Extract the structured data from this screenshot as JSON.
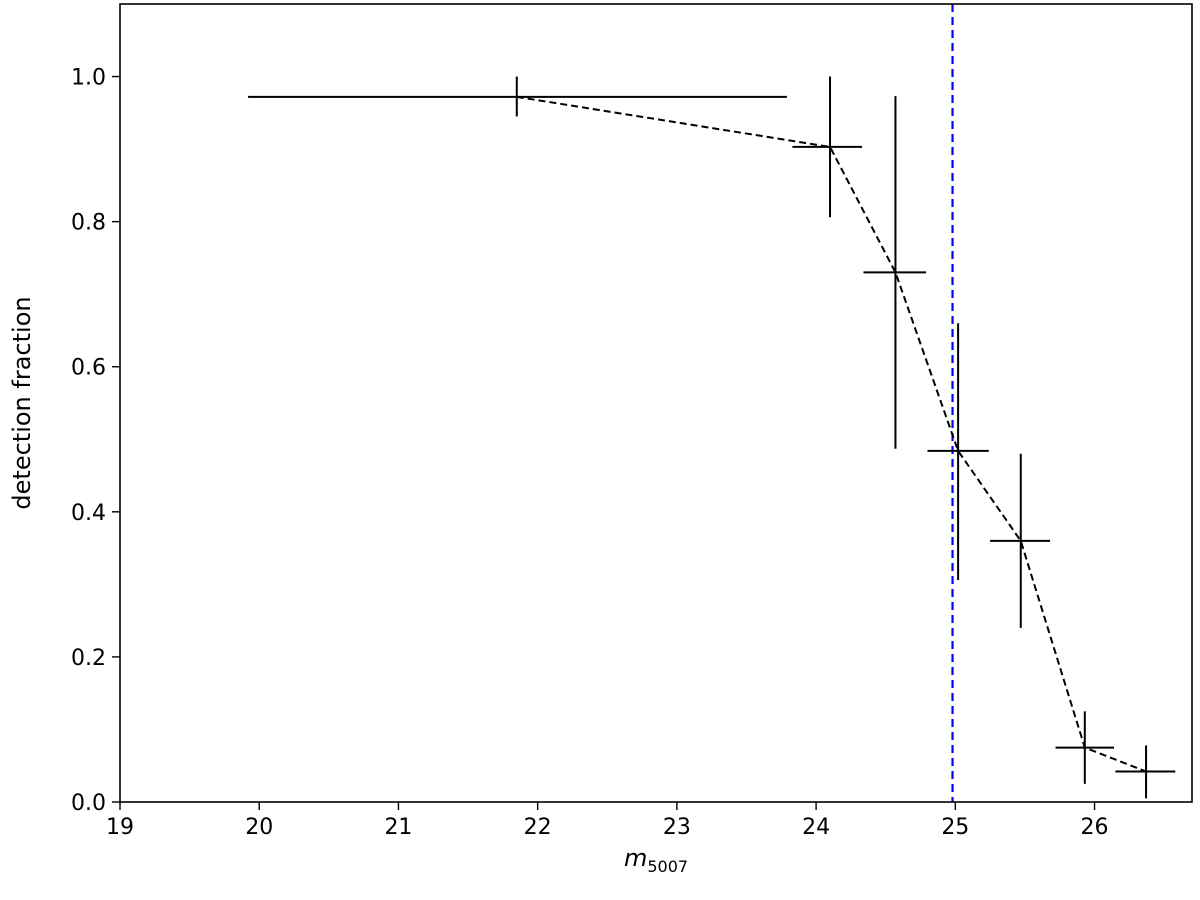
{
  "chart_data": {
    "type": "scatter",
    "xlabel": "m",
    "xlabel_subscript": "5007",
    "ylabel": "detection fraction",
    "xlim": [
      19,
      26.7
    ],
    "ylim": [
      0,
      1.1
    ],
    "xticks": [
      19,
      20,
      21,
      22,
      23,
      24,
      25,
      26
    ],
    "yticks": [
      0.0,
      0.2,
      0.4,
      0.6,
      0.8,
      1.0
    ],
    "ytick_labels": [
      "0.0",
      "0.2",
      "0.4",
      "0.6",
      "0.8",
      "1.0"
    ],
    "grid": false,
    "series": [
      {
        "style": "errorbar-dashed-line",
        "color": "#000000",
        "points": [
          {
            "x": 21.85,
            "y": 0.972,
            "xerr_low": 19.92,
            "xerr_high": 23.79,
            "yerr_low": 0.945,
            "yerr_high": 1.0
          },
          {
            "x": 24.1,
            "y": 0.903,
            "xerr_low": 23.83,
            "xerr_high": 24.33,
            "yerr_low": 0.806,
            "yerr_high": 1.0
          },
          {
            "x": 24.57,
            "y": 0.73,
            "xerr_low": 24.34,
            "xerr_high": 24.79,
            "yerr_low": 0.487,
            "yerr_high": 0.973
          },
          {
            "x": 25.02,
            "y": 0.484,
            "xerr_low": 24.8,
            "xerr_high": 25.24,
            "yerr_low": 0.306,
            "yerr_high": 0.66
          },
          {
            "x": 25.47,
            "y": 0.36,
            "xerr_low": 25.25,
            "xerr_high": 25.68,
            "yerr_low": 0.24,
            "yerr_high": 0.48
          },
          {
            "x": 25.93,
            "y": 0.075,
            "xerr_low": 25.72,
            "xerr_high": 26.14,
            "yerr_low": 0.025,
            "yerr_high": 0.125
          },
          {
            "x": 26.37,
            "y": 0.042,
            "xerr_low": 26.15,
            "xerr_high": 26.58,
            "yerr_low": 0.005,
            "yerr_high": 0.078
          }
        ]
      }
    ],
    "reference_line": {
      "x": 24.98,
      "color": "#0000ff",
      "style": "dashed"
    }
  }
}
